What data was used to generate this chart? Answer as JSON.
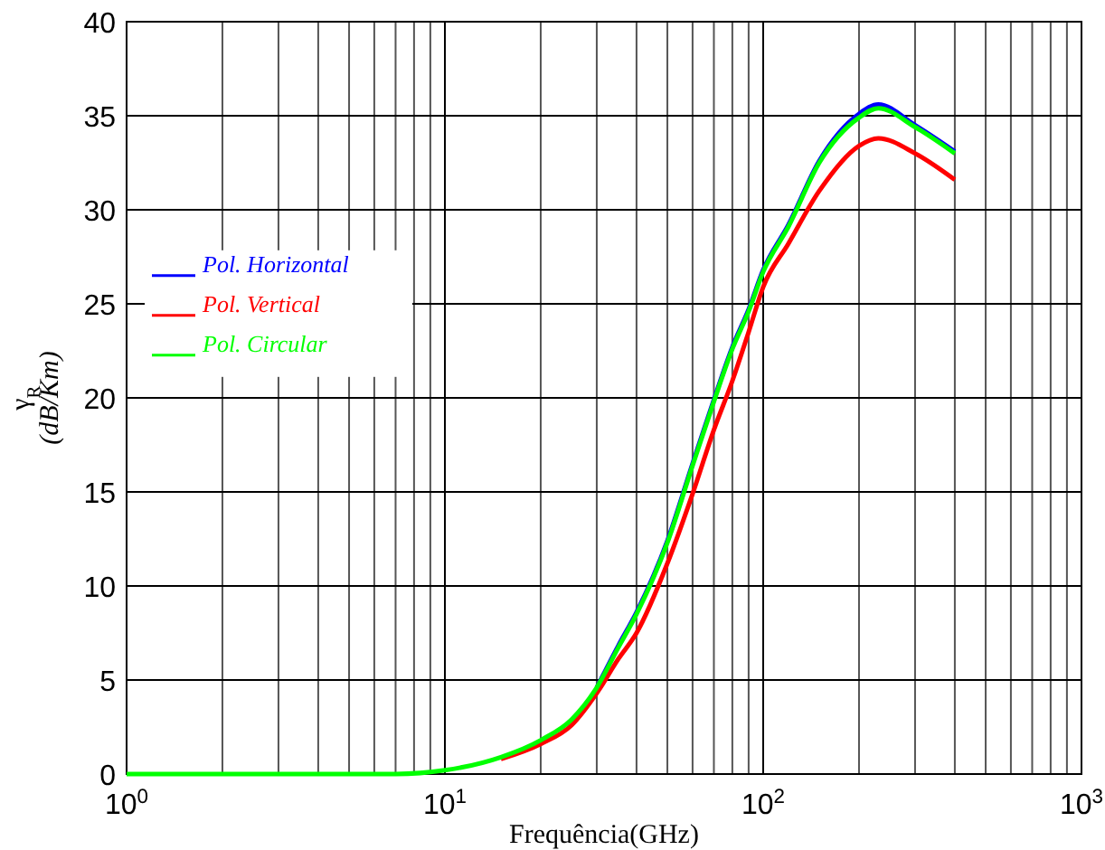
{
  "chart_data": {
    "type": "line",
    "xlabel": "Frequência(GHz)",
    "ylabel": "γ$_{R}$\n(dB/Km)",
    "log": "x",
    "grid": true,
    "legend": "left",
    "line_style": "solid",
    "marker": "none",
    "xlim": [
      1,
      1000
    ],
    "xticks": [
      {
        "value": 1,
        "label": "10$^{0}$"
      },
      {
        "value": 10,
        "label": "10$^{1}$"
      },
      {
        "value": 100,
        "label": "10$^{2}$"
      },
      {
        "value": 1000,
        "label": "10$^{3}$"
      }
    ],
    "ylim": [
      0,
      40
    ],
    "yticks": [
      0,
      5,
      10,
      15,
      20,
      25,
      30,
      35,
      40
    ],
    "x": [
      1,
      5,
      7,
      10,
      15,
      20,
      25,
      30,
      35,
      40,
      50,
      60,
      70,
      80,
      90,
      100,
      120,
      150,
      200,
      230,
      300,
      400
    ],
    "series": [
      {
        "name": "Pol. Horizontal",
        "color": "#0000ff",
        "values": [
          null,
          null,
          null,
          null,
          null,
          null,
          null,
          4.6,
          6.8,
          8.6,
          12.4,
          16.5,
          19.9,
          22.7,
          24.7,
          26.8,
          29.2,
          32.6,
          35.1,
          35.6,
          34.5,
          33.1
        ]
      },
      {
        "name": "Pol. Vertical",
        "color": "#ff0000",
        "values": [
          null,
          null,
          null,
          null,
          0.8,
          1.6,
          2.6,
          4.3,
          6.1,
          7.5,
          11.2,
          14.9,
          18.3,
          20.9,
          23.5,
          25.9,
          28.2,
          31.0,
          33.4,
          33.8,
          33.0,
          31.6
        ]
      },
      {
        "name": "Pol. Circular",
        "color": "#00ff00",
        "values": [
          0,
          0,
          0,
          0.2,
          0.9,
          1.8,
          2.9,
          4.6,
          6.7,
          8.5,
          12.3,
          16.4,
          19.8,
          22.6,
          24.6,
          26.7,
          29.1,
          32.5,
          34.9,
          35.4,
          34.4,
          33.0
        ]
      }
    ]
  }
}
